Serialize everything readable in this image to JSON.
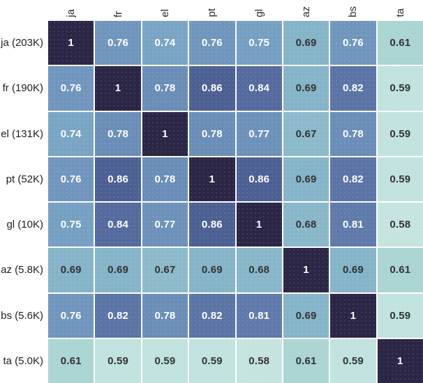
{
  "chart_data": {
    "type": "heatmap",
    "title": "",
    "xlabel": "",
    "ylabel": "",
    "legend": "none",
    "columns": [
      "ja",
      "fr",
      "el",
      "pt",
      "gl",
      "az",
      "bs",
      "ta"
    ],
    "rows": [
      "ja (203K)",
      "fr (190K)",
      "el (131K)",
      "pt (52K)",
      "gl (10K)",
      "az (5.8K)",
      "bs (5.6K)",
      "ta (5.0K)"
    ],
    "matrix": [
      [
        1,
        0.76,
        0.74,
        0.76,
        0.75,
        0.69,
        0.76,
        0.61
      ],
      [
        0.76,
        1,
        0.78,
        0.86,
        0.84,
        0.69,
        0.82,
        0.59
      ],
      [
        0.74,
        0.78,
        1,
        0.78,
        0.77,
        0.67,
        0.78,
        0.59
      ],
      [
        0.76,
        0.86,
        0.78,
        1,
        0.86,
        0.69,
        0.82,
        0.59
      ],
      [
        0.75,
        0.84,
        0.77,
        0.86,
        1,
        0.68,
        0.81,
        0.58
      ],
      [
        0.69,
        0.69,
        0.67,
        0.69,
        0.68,
        1,
        0.69,
        0.61
      ],
      [
        0.76,
        0.82,
        0.78,
        0.82,
        0.81,
        0.69,
        1,
        0.59
      ],
      [
        0.61,
        0.59,
        0.59,
        0.59,
        0.58,
        0.61,
        0.59,
        1
      ]
    ],
    "value_colors": {
      "1": "#2b2546",
      "0.86": "#4d6094",
      "0.84": "#556a9e",
      "0.82": "#5b74a6",
      "0.81": "#5f7aab",
      "0.78": "#6a8eb8",
      "0.77": "#6d92ba",
      "0.76": "#7096bd",
      "0.75": "#75a0c3",
      "0.74": "#79a5c5",
      "0.69": "#85b4c9",
      "0.68": "#89b7ca",
      "0.67": "#8cbacb",
      "0.61": "#aad5d2",
      "0.59": "#c1e2de",
      "0.58": "#c5e4e0"
    },
    "text_color_light": "#ffffff",
    "text_color_dark": "#323232",
    "light_text_min_value": 0.74,
    "grid_line_color": "#ffffff",
    "value_range": [
      0.58,
      1.0
    ]
  }
}
